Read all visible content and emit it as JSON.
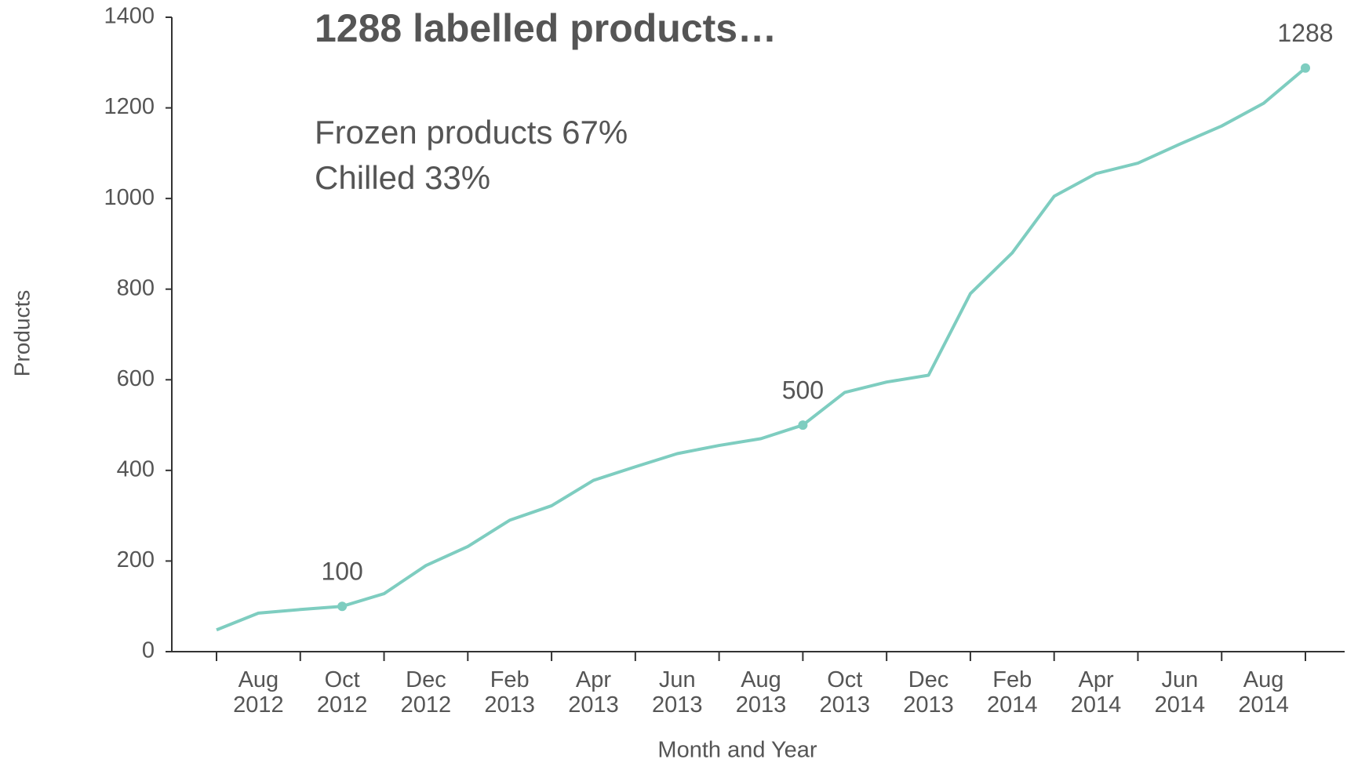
{
  "chart_data": {
    "type": "line",
    "title": "1288 labelled products…",
    "subtitle": [
      "Frozen products 67%",
      "Chilled 33%"
    ],
    "x_label": "Month and Year",
    "y_label": "Products",
    "categories": [
      null,
      "Aug 2012",
      null,
      "Oct 2012",
      null,
      "Dec 2012",
      null,
      "Feb 2013",
      null,
      "Apr 2013",
      null,
      "Jun 2013",
      null,
      "Aug 2013",
      null,
      "Oct 2013",
      null,
      "Dec 2013",
      null,
      "Feb 2014",
      null,
      "Apr 2014",
      null,
      "Jun 2014",
      null,
      "Aug 2014",
      null
    ],
    "values": [
      48,
      85,
      93,
      100,
      128,
      190,
      232,
      290,
      322,
      378,
      408,
      437,
      455,
      470,
      500,
      572,
      595,
      610,
      790,
      880,
      1005,
      1055,
      1078,
      1120,
      1160,
      1210,
      1288
    ],
    "value_labels": [
      null,
      null,
      null,
      "100",
      null,
      null,
      null,
      null,
      null,
      null,
      null,
      null,
      null,
      null,
      "500",
      null,
      null,
      null,
      null,
      null,
      null,
      null,
      null,
      null,
      null,
      null,
      "1288"
    ],
    "color": "#7ecdc0",
    "title_color": "#3ab5ad",
    "ylim": [
      0,
      1400
    ],
    "yticks": [
      0,
      200,
      400,
      600,
      800,
      1000,
      1200,
      1400
    ],
    "grid": false
  }
}
